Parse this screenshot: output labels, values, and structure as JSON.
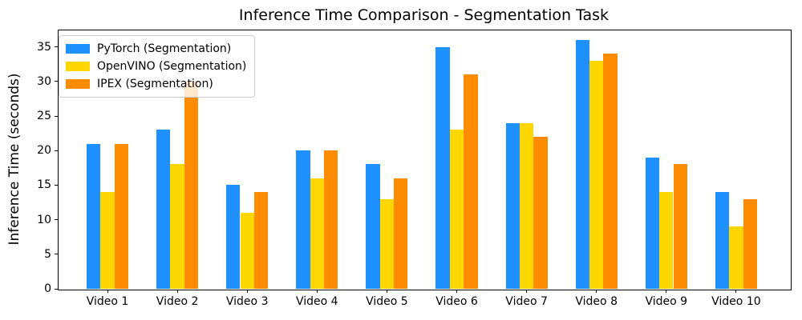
{
  "chart_data": {
    "type": "bar",
    "title": "Inference Time Comparison - Segmentation Task",
    "xlabel": "",
    "ylabel": "Inference Time (seconds)",
    "categories": [
      "Video 1",
      "Video 2",
      "Video 3",
      "Video 4",
      "Video 5",
      "Video 6",
      "Video 7",
      "Video 8",
      "Video 9",
      "Video 10"
    ],
    "series": [
      {
        "name": "PyTorch (Segmentation)",
        "color": "#1E90FF",
        "values": [
          21,
          23,
          15,
          20,
          18,
          35,
          24,
          36,
          19,
          14
        ]
      },
      {
        "name": "OpenVINO (Segmentation)",
        "color": "#FFD700",
        "values": [
          14,
          18,
          11,
          16,
          13,
          23,
          24,
          33,
          14,
          9
        ]
      },
      {
        "name": "IPEX (Segmentation)",
        "color": "#FF8C00",
        "values": [
          21,
          30,
          14,
          20,
          16,
          31,
          22,
          34,
          18,
          13
        ]
      }
    ],
    "yticks": [
      0,
      5,
      10,
      15,
      20,
      25,
      30,
      35
    ],
    "ylim": [
      0,
      37.5
    ],
    "grid": false,
    "legend_position": "upper left",
    "axis_color": "#000000",
    "legend_border_color": "#cccccc",
    "background_color": "#ffffff"
  }
}
